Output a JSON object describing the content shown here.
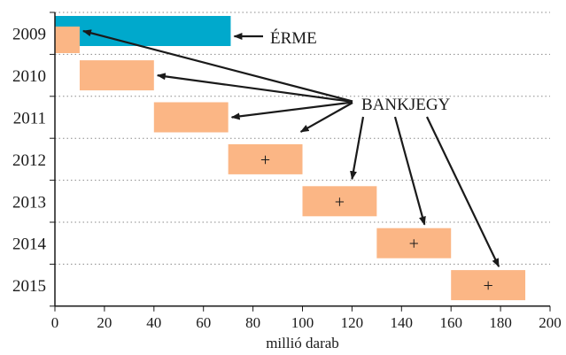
{
  "chart_data": {
    "type": "bar",
    "orientation": "horizontal",
    "title": "",
    "xlabel": "millió darab",
    "ylabel": "",
    "xlim": [
      0,
      200
    ],
    "x_ticks": [
      0,
      20,
      40,
      60,
      80,
      100,
      120,
      140,
      160,
      180,
      200
    ],
    "categories": [
      "2009",
      "2010",
      "2011",
      "2012",
      "2013",
      "2014",
      "2015"
    ],
    "gridlines": "horizontal-dotted",
    "colors": {
      "erme": "#00a9cc",
      "bankjegy": "#fbb685",
      "axis": "#1a1a1a",
      "grid": "#8a8a8a"
    },
    "series": [
      {
        "name": "ÉRME",
        "bars": [
          {
            "category": "2009",
            "start": 0,
            "end": 71
          }
        ]
      },
      {
        "name": "BANKJEGY",
        "bars": [
          {
            "category": "2009",
            "start": 0,
            "end": 10,
            "mark": ""
          },
          {
            "category": "2010",
            "start": 10,
            "end": 40,
            "mark": ""
          },
          {
            "category": "2011",
            "start": 40,
            "end": 70,
            "mark": ""
          },
          {
            "category": "2012",
            "start": 70,
            "end": 100,
            "mark": "+"
          },
          {
            "category": "2013",
            "start": 100,
            "end": 130,
            "mark": "+"
          },
          {
            "category": "2014",
            "start": 130,
            "end": 160,
            "mark": "+"
          },
          {
            "category": "2015",
            "start": 160,
            "end": 190,
            "mark": "+"
          }
        ]
      }
    ],
    "annotations": [
      {
        "text": "ÉRME",
        "points_to_series": "ÉRME",
        "points_to": [
          "2009"
        ]
      },
      {
        "text": "BANKJEGY",
        "points_to_series": "BANKJEGY",
        "points_to": [
          "2009",
          "2010",
          "2011",
          "2012",
          "2013",
          "2014",
          "2015"
        ]
      }
    ]
  }
}
